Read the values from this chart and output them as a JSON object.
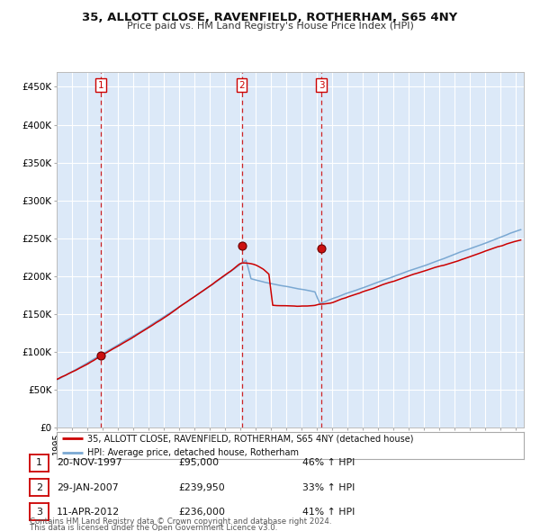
{
  "title1": "35, ALLOTT CLOSE, RAVENFIELD, ROTHERHAM, S65 4NY",
  "title2": "Price paid vs. HM Land Registry's House Price Index (HPI)",
  "red_label": "35, ALLOTT CLOSE, RAVENFIELD, ROTHERHAM, S65 4NY (detached house)",
  "blue_label": "HPI: Average price, detached house, Rotherham",
  "transactions": [
    {
      "num": 1,
      "date": "20-NOV-1997",
      "price": 95000,
      "hpi_pct": "46% ↑ HPI"
    },
    {
      "num": 2,
      "date": "29-JAN-2007",
      "price": 239950,
      "hpi_pct": "33% ↑ HPI"
    },
    {
      "num": 3,
      "date": "11-APR-2012",
      "price": 236000,
      "hpi_pct": "41% ↑ HPI"
    }
  ],
  "transaction_dates_decimal": [
    1997.89,
    2007.08,
    2012.28
  ],
  "transaction_prices": [
    95000,
    239950,
    236000
  ],
  "ylim": [
    0,
    470000
  ],
  "yticks": [
    0,
    50000,
    100000,
    150000,
    200000,
    250000,
    300000,
    350000,
    400000,
    450000
  ],
  "background_color": "#dce9f8",
  "grid_color": "#ffffff",
  "red_color": "#cc0000",
  "blue_color": "#7aa8d2",
  "dashed_color": "#cc0000",
  "footnote1": "Contains HM Land Registry data © Crown copyright and database right 2024.",
  "footnote2": "This data is licensed under the Open Government Licence v3.0.",
  "xlim_start": 1995.0,
  "xlim_end": 2025.5
}
